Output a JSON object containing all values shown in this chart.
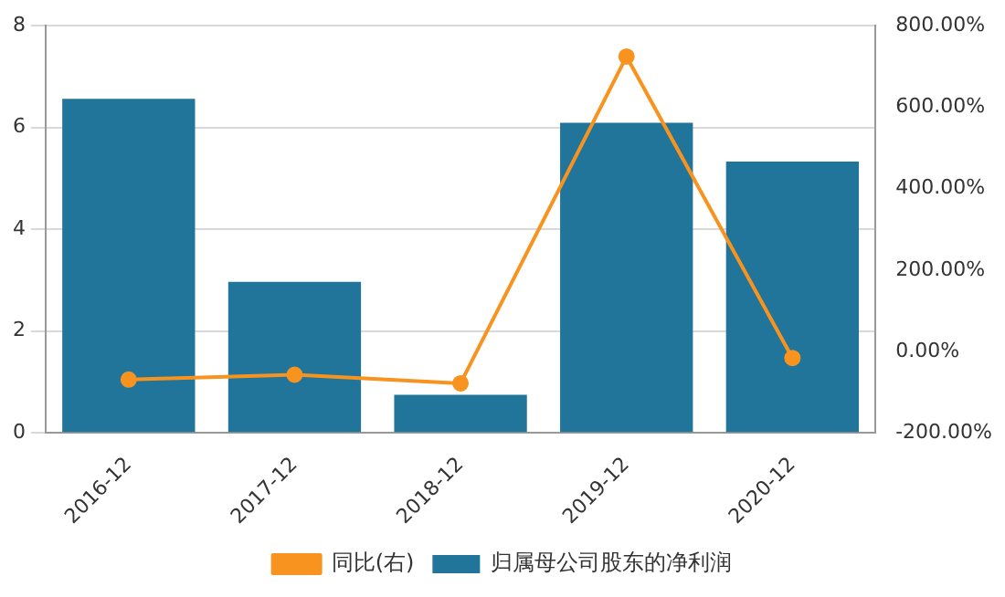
{
  "chart_data": {
    "type": "bar",
    "categories": [
      "2016-12",
      "2017-12",
      "2018-12",
      "2019-12",
      "2020-12"
    ],
    "series": [
      {
        "name": "归属母公司股东的净利润",
        "color": "#21759b",
        "values": [
          6.56,
          2.97,
          0.75,
          6.09,
          5.33
        ]
      },
      {
        "name": "同比(右)",
        "type": "line",
        "axis": "y2",
        "color": "#f7931e",
        "values": [
          -69,
          -57,
          -78,
          724,
          -16
        ]
      }
    ],
    "ylim": [
      0,
      8
    ],
    "yticks": [
      0,
      2,
      4,
      6,
      8
    ],
    "y2lim": [
      -200,
      800
    ],
    "y2ticks": [
      {
        "value": -200,
        "label": "-200.00%"
      },
      {
        "value": 0,
        "label": "0.00%"
      },
      {
        "value": 200,
        "label": "200.00%"
      },
      {
        "value": 400,
        "label": "400.00%"
      },
      {
        "value": 600,
        "label": "600.00%"
      },
      {
        "value": 800,
        "label": "800.00%"
      }
    ],
    "grid": "y",
    "legend": "bottom",
    "marker": "circle"
  }
}
